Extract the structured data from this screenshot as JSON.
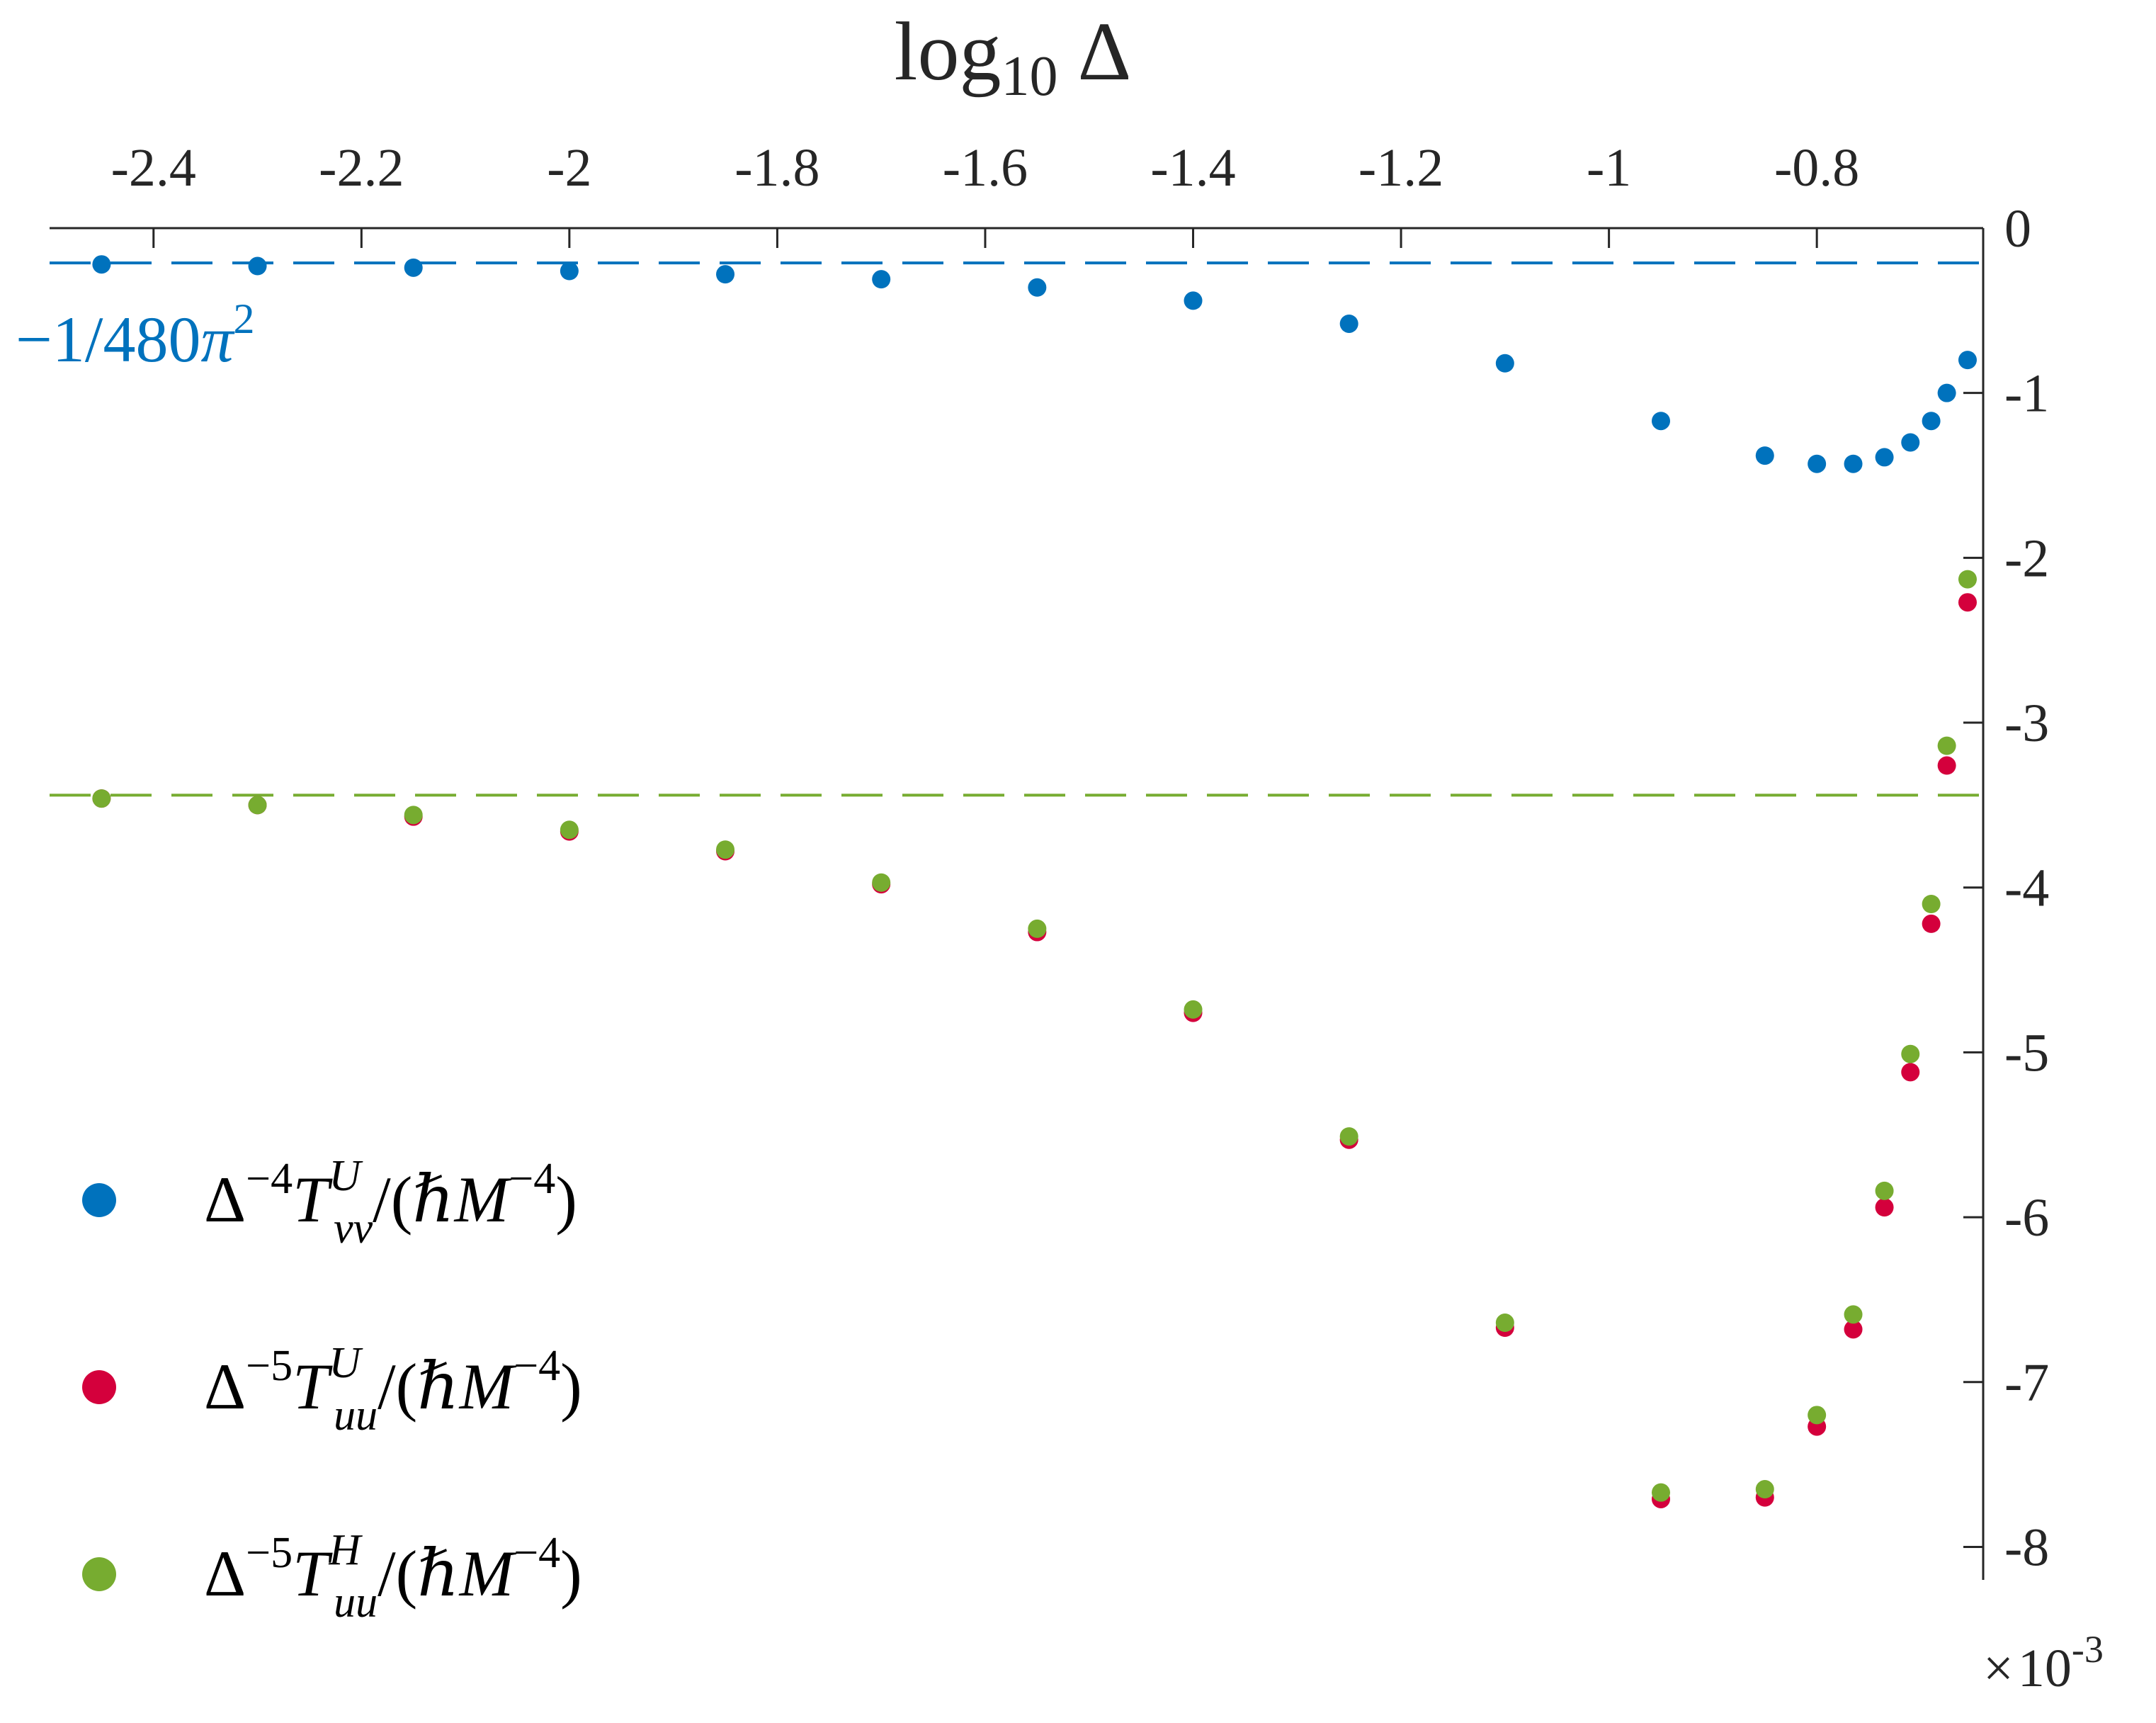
{
  "chart_data": {
    "type": "scatter",
    "title": "",
    "xlabel": {
      "base": "log",
      "sub": "10",
      "symbol": "Δ"
    },
    "xlim": [
      -2.5,
      -0.64
    ],
    "ylim": [
      -0.0082,
      0
    ],
    "x_ticks": [
      -2.4,
      -2.2,
      -2.0,
      -1.8,
      -1.6,
      -1.4,
      -1.2,
      -1.0,
      -0.8
    ],
    "x_tick_labels": [
      "-2.4",
      "-2.2",
      "-2",
      "-1.8",
      "-1.6",
      "-1.4",
      "-1.2",
      "-1",
      "-0.8"
    ],
    "y_ticks": [
      0,
      -0.001,
      -0.002,
      -0.003,
      -0.004,
      -0.005,
      -0.006,
      -0.007,
      -0.008
    ],
    "y_tick_labels": [
      "0",
      "-1",
      "-2",
      "-3",
      "-4",
      "-5",
      "-6",
      "-7",
      "-8"
    ],
    "y_exponent_label": {
      "times": "×",
      "base": "10",
      "exp": "-3"
    },
    "reference_lines": [
      {
        "name": "vacuum-polarization",
        "value": -0.000211,
        "color": "#0072BD",
        "label": {
          "minus": "−",
          "num": "1",
          "slash": "/",
          "den": "480",
          "pi": "π",
          "exp": "2"
        }
      },
      {
        "name": "horizon-limit",
        "value": -0.00344,
        "color": "#77AC30"
      }
    ],
    "legend_position": "lower-left",
    "series": [
      {
        "name": "T_vv_U",
        "color": "#0072BD",
        "legend": {
          "delta": "Δ",
          "exp": "−4",
          "T": "T",
          "sup": "U",
          "sub": "vv",
          "tail": "/(",
          "hbar": "ℏ",
          "M": "M",
          "mexp": "−4",
          "close": ")"
        },
        "x": [
          -2.45,
          -2.3,
          -2.15,
          -2.0,
          -1.85,
          -1.7,
          -1.55,
          -1.4,
          -1.25,
          -1.1,
          -0.95,
          -0.85,
          -0.8,
          -0.765,
          -0.735,
          -0.71,
          -0.69,
          -0.675,
          -0.655
        ],
        "y": [
          -0.00022,
          -0.00023,
          -0.00024,
          -0.00026,
          -0.00028,
          -0.00031,
          -0.00036,
          -0.00044,
          -0.00058,
          -0.00082,
          -0.00117,
          -0.00138,
          -0.00143,
          -0.00143,
          -0.00139,
          -0.0013,
          -0.00117,
          -0.001,
          -0.0008
        ]
      },
      {
        "name": "T_uu_U",
        "color": "#D4003C",
        "legend": {
          "delta": "Δ",
          "exp": "−5",
          "T": "T",
          "sup": "U",
          "sub": "uu",
          "tail": "/(",
          "hbar": "ℏ",
          "M": "M",
          "mexp": "−4",
          "close": ")"
        },
        "x": [
          -2.45,
          -2.3,
          -2.15,
          -2.0,
          -1.85,
          -1.7,
          -1.55,
          -1.4,
          -1.25,
          -1.1,
          -0.95,
          -0.85,
          -0.8,
          -0.765,
          -0.735,
          -0.71,
          -0.69,
          -0.675,
          -0.655
        ],
        "y": [
          -0.00346,
          -0.0035,
          -0.00357,
          -0.00366,
          -0.00378,
          -0.00398,
          -0.00427,
          -0.00476,
          -0.00553,
          -0.00667,
          -0.00771,
          -0.0077,
          -0.00727,
          -0.00668,
          -0.00594,
          -0.00512,
          -0.00422,
          -0.00326,
          -0.00227
        ]
      },
      {
        "name": "T_uu_H",
        "color": "#77AC30",
        "legend": {
          "delta": "Δ",
          "exp": "−5",
          "T": "T",
          "sup": "H",
          "sub": "uu",
          "tail": "/(",
          "hbar": "ℏ",
          "M": "M",
          "mexp": "−4",
          "close": ")"
        },
        "x": [
          -2.45,
          -2.3,
          -2.15,
          -2.0,
          -1.85,
          -1.7,
          -1.55,
          -1.4,
          -1.25,
          -1.1,
          -0.95,
          -0.85,
          -0.8,
          -0.765,
          -0.735,
          -0.71,
          -0.69,
          -0.675,
          -0.655
        ],
        "y": [
          -0.00346,
          -0.0035,
          -0.00356,
          -0.00365,
          -0.00377,
          -0.00397,
          -0.00425,
          -0.00474,
          -0.00551,
          -0.00664,
          -0.00767,
          -0.00765,
          -0.0072,
          -0.00659,
          -0.00584,
          -0.00501,
          -0.0041,
          -0.00314,
          -0.00213
        ]
      }
    ]
  }
}
